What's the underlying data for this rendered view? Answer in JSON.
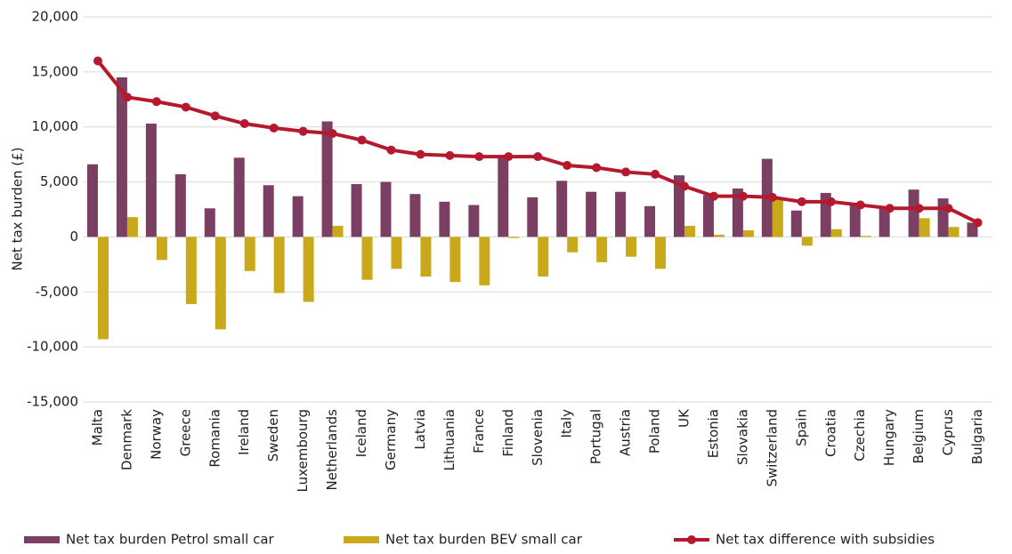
{
  "chart_data": {
    "type": "bar_line",
    "y_label": "Net tax burden (£)",
    "categories": [
      "Malta",
      "Denmark",
      "Norway",
      "Greece",
      "Romania",
      "Ireland",
      "Sweden",
      "Luxembourg",
      "Netherlands",
      "Iceland",
      "Germany",
      "Latvia",
      "Lithuania",
      "France",
      "Finland",
      "Slovenia",
      "Italy",
      "Portugal",
      "Austria",
      "Poland",
      "UK",
      "Estonia",
      "Slovakia",
      "Switzerland",
      "Spain",
      "Croatia",
      "Czechia",
      "Hungary",
      "Belgium",
      "Cyprus",
      "Bulgaria"
    ],
    "series": [
      {
        "name": "Net tax burden Petrol small car",
        "type": "bar",
        "color": "#7b3f63",
        "values": [
          6600,
          14500,
          10300,
          5700,
          2600,
          7200,
          4700,
          3700,
          10500,
          4800,
          5000,
          3900,
          3200,
          2900,
          7300,
          3600,
          5100,
          4100,
          4100,
          2800,
          5600,
          3800,
          4400,
          7100,
          2400,
          4000,
          2900,
          2600,
          4300,
          3500,
          1300
        ]
      },
      {
        "name": "Net tax burden BEV small car",
        "type": "bar",
        "color": "#c9a81a",
        "values": [
          -9300,
          1800,
          -2100,
          -6100,
          -8400,
          -3100,
          -5100,
          -5900,
          1000,
          -3900,
          -2900,
          -3600,
          -4100,
          -4400,
          -100,
          -3600,
          -1400,
          -2300,
          -1800,
          -2900,
          1000,
          200,
          600,
          3400,
          -800,
          700,
          100,
          0,
          1700,
          900,
          0
        ]
      },
      {
        "name": "Net tax difference with subsidies",
        "type": "line",
        "color": "#b5192e",
        "values": [
          16000,
          12700,
          12300,
          11800,
          11000,
          10300,
          9900,
          9600,
          9400,
          8800,
          7900,
          7500,
          7400,
          7300,
          7300,
          7300,
          6500,
          6300,
          5900,
          5700,
          4600,
          3700,
          3700,
          3600,
          3200,
          3200,
          2900,
          2600,
          2600,
          2600,
          1300
        ]
      }
    ],
    "ylim": [
      -15000,
      20000
    ],
    "yticks": [
      {
        "value": -15000,
        "label": "-15,000"
      },
      {
        "value": -10000,
        "label": "-10,000"
      },
      {
        "value": -5000,
        "label": "-5,000"
      },
      0,
      {
        "value": 5000,
        "label": "5,000"
      },
      {
        "value": 10000,
        "label": "10,000"
      },
      {
        "value": 15000,
        "label": "15,000"
      },
      {
        "value": 20000,
        "label": "20,000"
      }
    ],
    "grid": true,
    "legend": "bottom"
  }
}
